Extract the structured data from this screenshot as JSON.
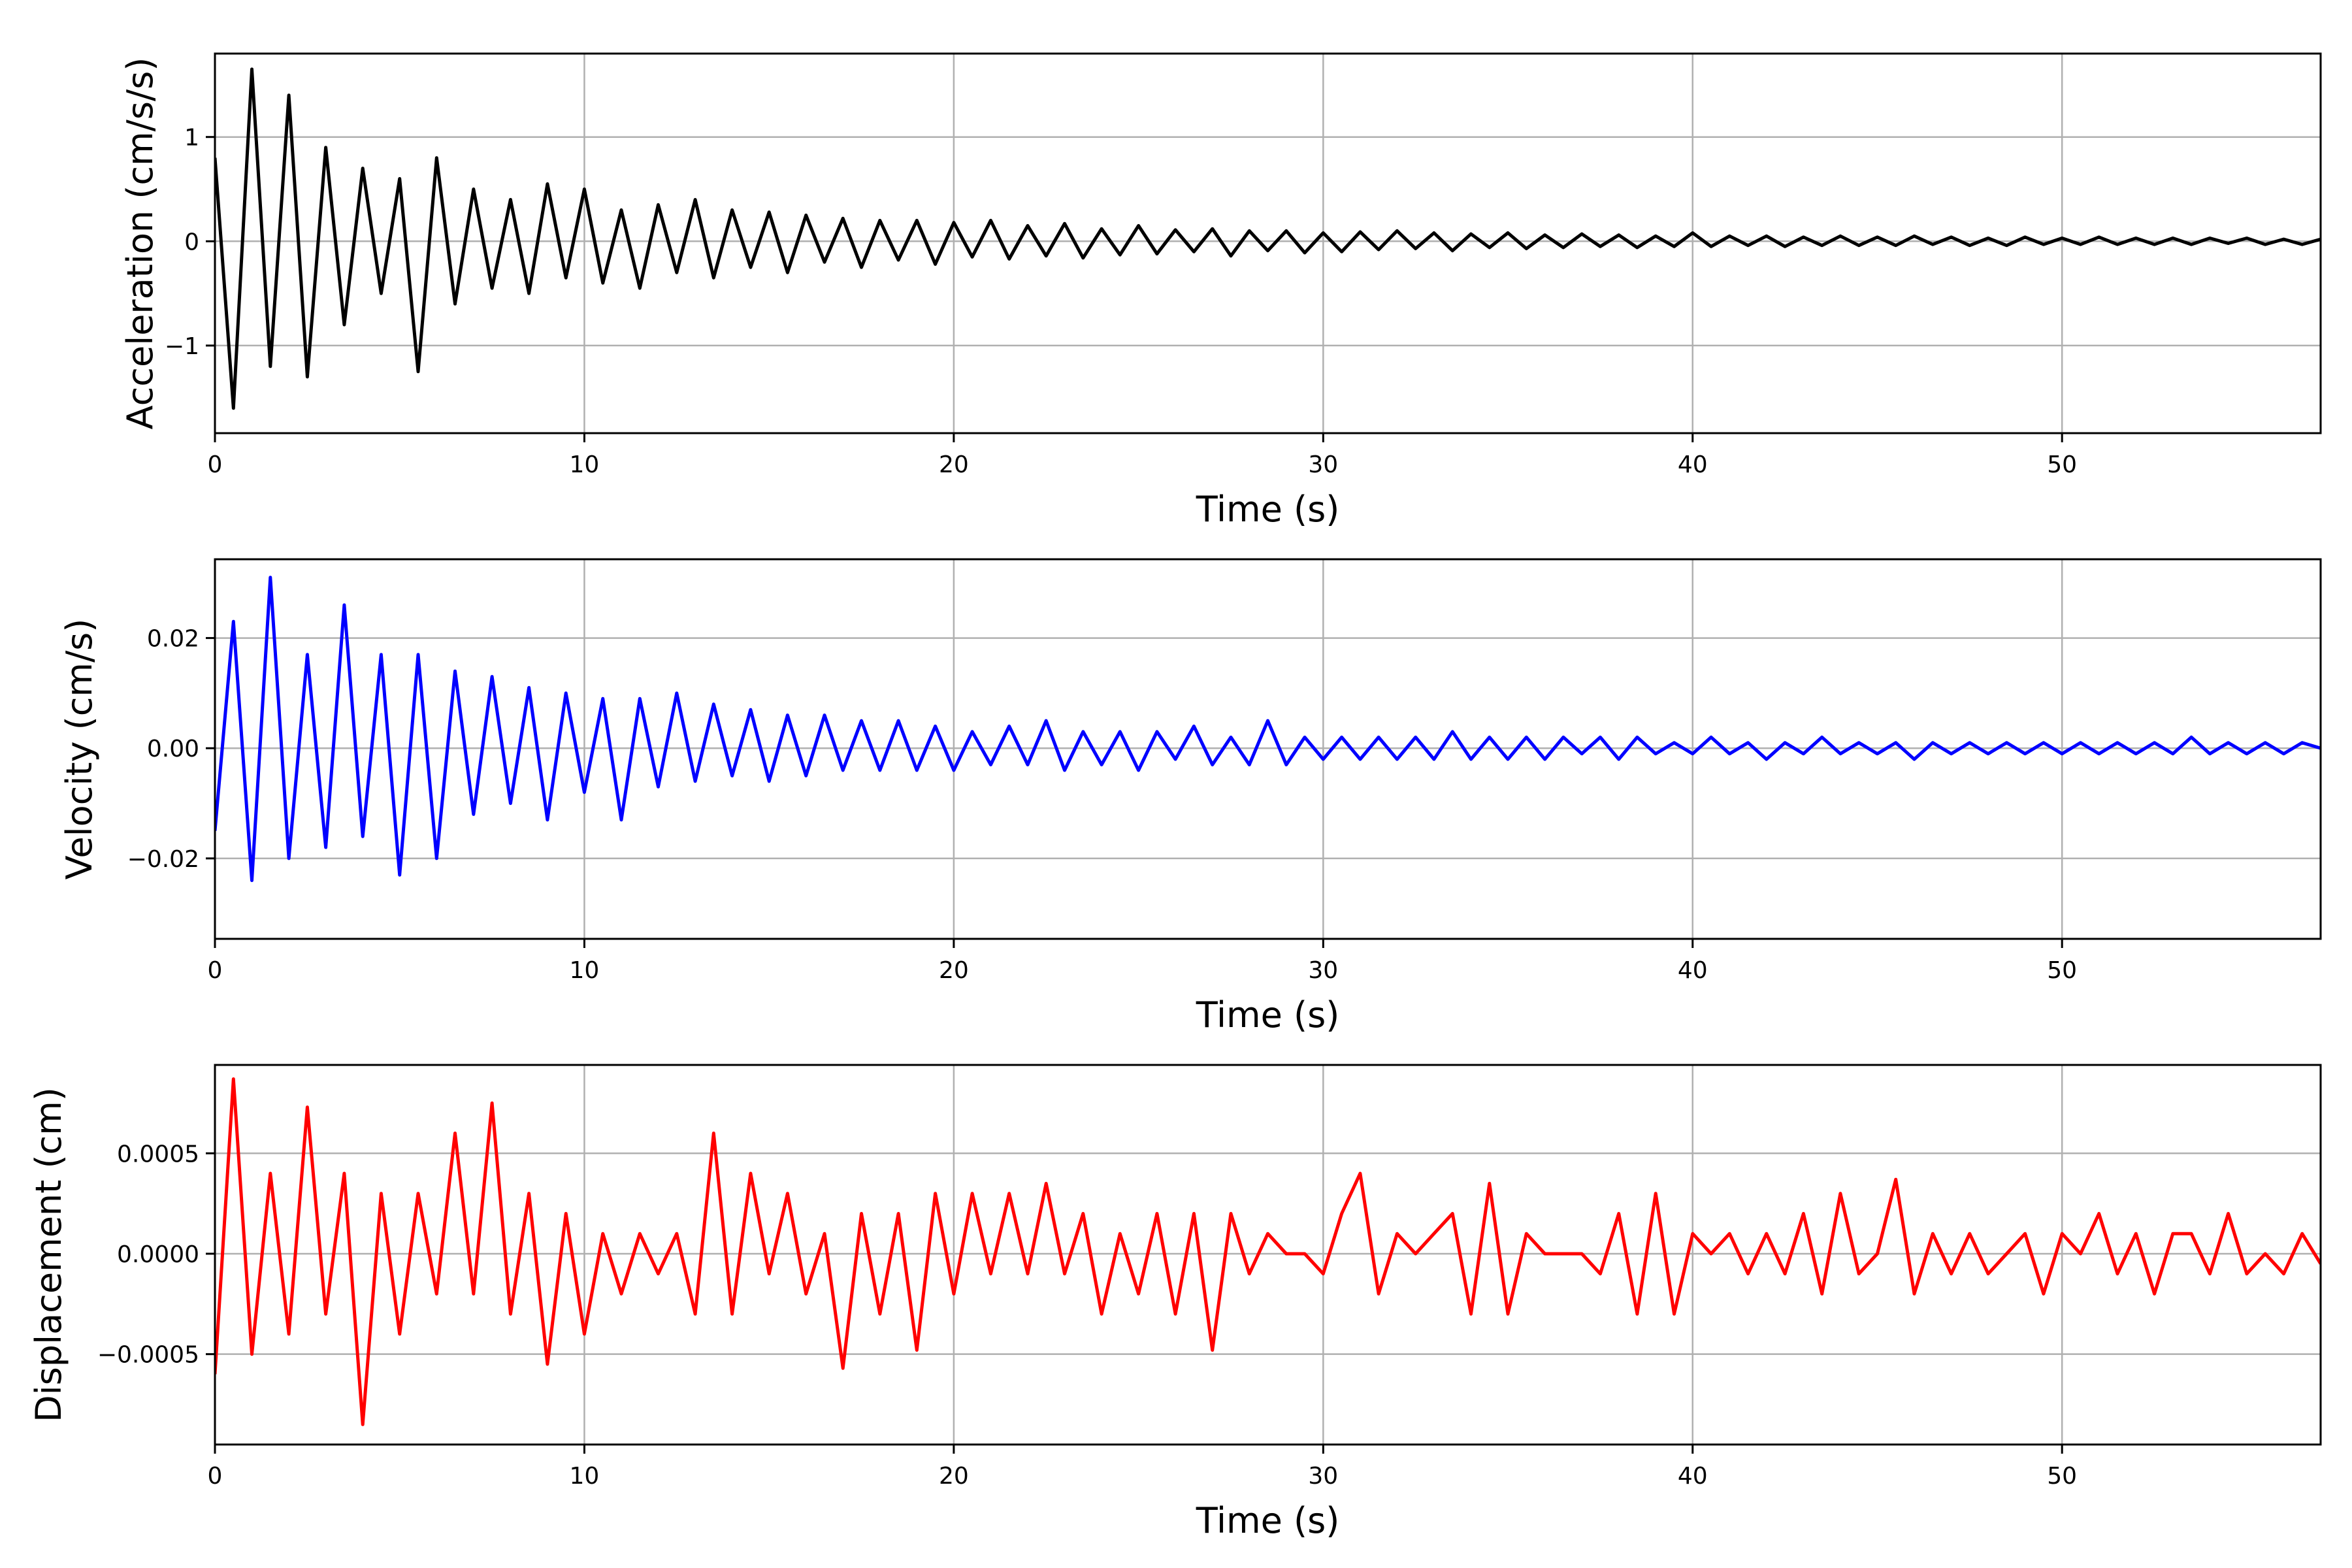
{
  "chart_data": [
    {
      "type": "line",
      "title": "",
      "xlabel": "Time (s)",
      "ylabel": "Acceleration (cm/s/s)",
      "xlim": [
        0,
        57
      ],
      "ylim": [
        -1.84,
        1.8
      ],
      "xticks": [
        0,
        10,
        20,
        30,
        40,
        50
      ],
      "xtick_labels": [
        "0",
        "10",
        "20",
        "30",
        "40",
        "50"
      ],
      "yticks": [
        -1,
        0,
        1
      ],
      "ytick_labels": [
        "−1",
        "0",
        "1"
      ],
      "grid": true,
      "color": "#000000",
      "t_start": 0,
      "t_end": 57,
      "values": [
        0.8,
        -1.6,
        1.65,
        -1.2,
        1.4,
        -1.3,
        0.9,
        -0.8,
        0.7,
        -0.5,
        0.6,
        -1.25,
        0.8,
        -0.6,
        0.5,
        -0.45,
        0.4,
        -0.5,
        0.55,
        -0.35,
        0.5,
        -0.4,
        0.3,
        -0.45,
        0.35,
        -0.3,
        0.4,
        -0.35,
        0.3,
        -0.25,
        0.28,
        -0.3,
        0.25,
        -0.2,
        0.22,
        -0.25,
        0.2,
        -0.18,
        0.2,
        -0.22,
        0.18,
        -0.15,
        0.2,
        -0.17,
        0.15,
        -0.14,
        0.17,
        -0.16,
        0.12,
        -0.13,
        0.15,
        -0.12,
        0.11,
        -0.1,
        0.12,
        -0.14,
        0.1,
        -0.09,
        0.1,
        -0.11,
        0.08,
        -0.1,
        0.09,
        -0.08,
        0.1,
        -0.07,
        0.08,
        -0.09,
        0.07,
        -0.06,
        0.08,
        -0.07,
        0.06,
        -0.06,
        0.07,
        -0.05,
        0.06,
        -0.06,
        0.05,
        -0.05,
        0.08,
        -0.05,
        0.05,
        -0.04,
        0.05,
        -0.05,
        0.04,
        -0.04,
        0.05,
        -0.04,
        0.04,
        -0.04,
        0.05,
        -0.03,
        0.04,
        -0.04,
        0.03,
        -0.04,
        0.04,
        -0.03,
        0.03,
        -0.03,
        0.04,
        -0.03,
        0.03,
        -0.03,
        0.03,
        -0.03,
        0.03,
        -0.02,
        0.03,
        -0.03,
        0.02,
        -0.03,
        0.02
      ]
    },
    {
      "type": "line",
      "title": "",
      "xlabel": "Time (s)",
      "ylabel": "Velocity (cm/s)",
      "xlim": [
        0,
        57
      ],
      "ylim": [
        -0.0346,
        0.0343
      ],
      "xticks": [
        0,
        10,
        20,
        30,
        40,
        50
      ],
      "xtick_labels": [
        "0",
        "10",
        "20",
        "30",
        "40",
        "50"
      ],
      "yticks": [
        -0.02,
        0,
        0.02
      ],
      "ytick_labels": [
        "−0.02",
        "0.00",
        "0.02"
      ],
      "grid": true,
      "color": "#0000ff",
      "t_start": 0,
      "t_end": 57,
      "values": [
        -0.015,
        0.023,
        -0.024,
        0.031,
        -0.02,
        0.017,
        -0.018,
        0.026,
        -0.016,
        0.017,
        -0.023,
        0.017,
        -0.02,
        0.014,
        -0.012,
        0.013,
        -0.01,
        0.011,
        -0.013,
        0.01,
        -0.008,
        0.009,
        -0.013,
        0.009,
        -0.007,
        0.01,
        -0.006,
        0.008,
        -0.005,
        0.007,
        -0.006,
        0.006,
        -0.005,
        0.006,
        -0.004,
        0.005,
        -0.004,
        0.005,
        -0.004,
        0.004,
        -0.004,
        0.003,
        -0.003,
        0.004,
        -0.003,
        0.005,
        -0.004,
        0.003,
        -0.003,
        0.003,
        -0.004,
        0.003,
        -0.002,
        0.004,
        -0.003,
        0.002,
        -0.003,
        0.005,
        -0.003,
        0.002,
        -0.002,
        0.002,
        -0.002,
        0.002,
        -0.002,
        0.002,
        -0.002,
        0.003,
        -0.002,
        0.002,
        -0.002,
        0.002,
        -0.002,
        0.002,
        -0.001,
        0.002,
        -0.002,
        0.002,
        -0.001,
        0.001,
        -0.001,
        0.002,
        -0.001,
        0.001,
        -0.002,
        0.001,
        -0.001,
        0.002,
        -0.001,
        0.001,
        -0.001,
        0.001,
        -0.002,
        0.001,
        -0.001,
        0.001,
        -0.001,
        0.001,
        -0.001,
        0.001,
        -0.001,
        0.001,
        -0.001,
        0.001,
        -0.001,
        0.001,
        -0.001,
        0.002,
        -0.001,
        0.001,
        -0.001,
        0.001,
        -0.001,
        0.001,
        0.0
      ]
    },
    {
      "type": "line",
      "title": "",
      "xlabel": "Time (s)",
      "ylabel": "Displacement (cm)",
      "xlim": [
        0,
        57
      ],
      "ylim": [
        -0.00095,
        0.00094
      ],
      "xticks": [
        0,
        10,
        20,
        30,
        40,
        50
      ],
      "xtick_labels": [
        "0",
        "10",
        "20",
        "30",
        "40",
        "50"
      ],
      "yticks": [
        -0.0005,
        0,
        0.0005
      ],
      "ytick_labels": [
        "−0.0005",
        "0.0000",
        "0.0005"
      ],
      "grid": true,
      "color": "#ff0000",
      "t_start": 0,
      "t_end": 57,
      "values": [
        -0.0006,
        0.00087,
        -0.0005,
        0.0004,
        -0.0004,
        0.00073,
        -0.0003,
        0.0004,
        -0.00085,
        0.0003,
        -0.0004,
        0.0003,
        -0.0002,
        0.0006,
        -0.0002,
        0.00075,
        -0.0003,
        0.0003,
        -0.00055,
        0.0002,
        -0.0004,
        0.0001,
        -0.0002,
        0.0001,
        -0.0001,
        0.0001,
        -0.0003,
        0.0006,
        -0.0003,
        0.0004,
        -0.0001,
        0.0003,
        -0.0002,
        0.0001,
        -0.00057,
        0.0002,
        -0.0003,
        0.0002,
        -0.00048,
        0.0003,
        -0.0002,
        0.0003,
        -0.0001,
        0.0003,
        -0.0001,
        0.00035,
        -0.0001,
        0.0002,
        -0.0003,
        0.0001,
        -0.0002,
        0.0002,
        -0.0003,
        0.0002,
        -0.00048,
        0.0002,
        -0.0001,
        0.0001,
        0.0,
        0.0,
        -0.0001,
        0.0002,
        0.0004,
        -0.0002,
        0.0001,
        0.0,
        0.0001,
        0.0002,
        -0.0003,
        0.00035,
        -0.0003,
        0.0001,
        0.0,
        0.0,
        0.0,
        -0.0001,
        0.0002,
        -0.0003,
        0.0003,
        -0.0003,
        0.0001,
        0.0,
        0.0001,
        -0.0001,
        0.0001,
        -0.0001,
        0.0002,
        -0.0002,
        0.0003,
        -0.0001,
        0.0,
        0.00037,
        -0.0002,
        0.0001,
        -0.0001,
        0.0001,
        -0.0001,
        0.0,
        0.0001,
        -0.0002,
        0.0001,
        0.0,
        0.0002,
        -0.0001,
        0.0001,
        -0.0002,
        0.0001,
        0.0001,
        -0.0001,
        0.0002,
        -0.0001,
        0.0,
        -0.0001,
        0.0001,
        -5e-05
      ]
    }
  ]
}
